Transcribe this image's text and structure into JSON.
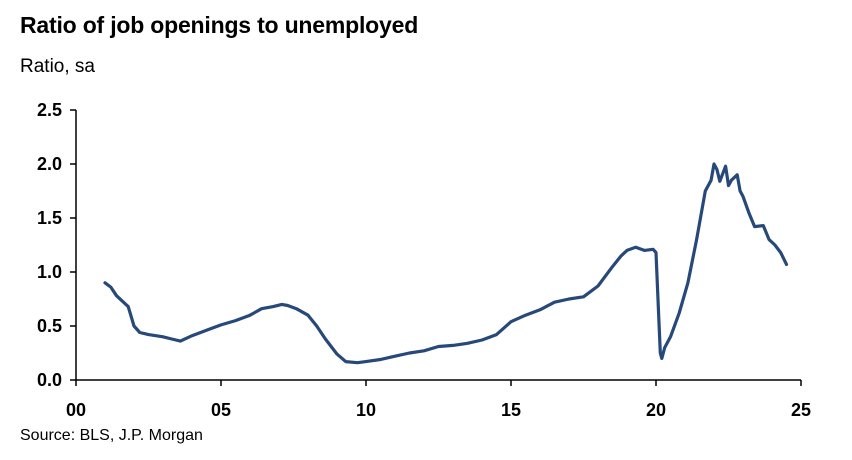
{
  "title": "Ratio of job openings to unemployed",
  "subtitle": "Ratio, sa",
  "source": "Source: BLS, J.P. Morgan",
  "colors": {
    "line": "#27497a",
    "axis": "#000000"
  },
  "chart_data": {
    "type": "line",
    "title": "Ratio of job openings to unemployed",
    "ylabel": "Ratio, sa",
    "xlabel": "",
    "xlim": [
      0,
      25
    ],
    "ylim": [
      0,
      2.5
    ],
    "xticks": [
      0,
      5,
      10,
      15,
      20,
      25
    ],
    "xtick_labels": [
      "00",
      "05",
      "10",
      "15",
      "20",
      "25"
    ],
    "yticks": [
      0,
      0.5,
      1.0,
      1.5,
      2.0,
      2.5
    ],
    "ytick_labels": [
      "0.0",
      "0.5",
      "1.0",
      "1.5",
      "2.0",
      "2.5"
    ],
    "grid": false,
    "legend": "none",
    "series": [
      {
        "x": [
          1.0,
          1.2,
          1.4,
          1.6,
          1.8,
          2.0,
          2.2,
          2.5,
          3.0,
          3.3,
          3.6,
          4.0,
          4.5,
          5.0,
          5.5,
          6.0,
          6.4,
          6.8,
          7.1,
          7.3,
          7.6,
          8.0,
          8.3,
          8.6,
          9.0,
          9.3,
          9.7,
          10.0,
          10.5,
          11.0,
          11.5,
          12.0,
          12.5,
          13.0,
          13.5,
          14.0,
          14.5,
          15.0,
          15.5,
          16.0,
          16.5,
          17.0,
          17.5,
          18.0,
          18.5,
          18.8,
          19.0,
          19.3,
          19.6,
          19.9,
          20.0,
          20.1,
          20.15,
          20.2,
          20.3,
          20.5,
          20.8,
          21.1,
          21.4,
          21.7,
          21.9,
          22.0,
          22.1,
          22.2,
          22.4,
          22.5,
          22.6,
          22.8,
          22.9,
          23.0,
          23.2,
          23.4,
          23.7,
          23.9,
          24.1,
          24.3,
          24.5
        ],
        "y": [
          0.9,
          0.86,
          0.78,
          0.73,
          0.68,
          0.5,
          0.44,
          0.42,
          0.4,
          0.38,
          0.36,
          0.41,
          0.46,
          0.51,
          0.55,
          0.6,
          0.66,
          0.68,
          0.7,
          0.69,
          0.66,
          0.6,
          0.5,
          0.38,
          0.24,
          0.17,
          0.16,
          0.17,
          0.19,
          0.22,
          0.25,
          0.27,
          0.31,
          0.32,
          0.34,
          0.37,
          0.42,
          0.54,
          0.6,
          0.65,
          0.72,
          0.75,
          0.77,
          0.87,
          1.05,
          1.15,
          1.2,
          1.23,
          1.2,
          1.21,
          1.18,
          0.55,
          0.25,
          0.2,
          0.3,
          0.4,
          0.62,
          0.9,
          1.3,
          1.75,
          1.85,
          2.0,
          1.95,
          1.84,
          1.98,
          1.8,
          1.85,
          1.9,
          1.75,
          1.7,
          1.55,
          1.42,
          1.43,
          1.3,
          1.25,
          1.18,
          1.07
        ]
      }
    ]
  }
}
